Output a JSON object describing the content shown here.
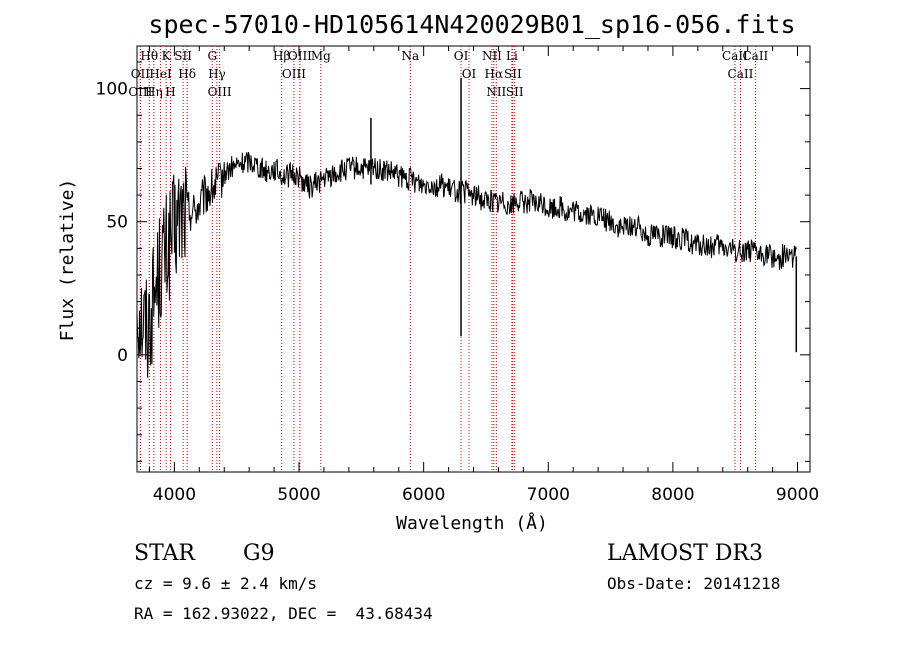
{
  "chart_data": {
    "type": "line",
    "title": "spec-57010-HD105614N420029B01_sp16-056.fits",
    "xlabel": "Wavelength (Å)",
    "ylabel": "Flux (relative)",
    "xlim": [
      3700,
      9100
    ],
    "ylim": [
      -44,
      116
    ],
    "x_ticks": [
      4000,
      5000,
      6000,
      7000,
      8000,
      9000
    ],
    "y_ticks": [
      0,
      50,
      100
    ],
    "grid": false,
    "series": [
      {
        "name": "flux",
        "x": [
          3700,
          3740,
          3780,
          3820,
          3860,
          3900,
          3950,
          4000,
          4050,
          4100,
          4150,
          4200,
          4250,
          4300,
          4350,
          4400,
          4450,
          4500,
          4550,
          4600,
          4650,
          4700,
          4750,
          4800,
          4850,
          4900,
          4950,
          5000,
          5050,
          5100,
          5150,
          5200,
          5250,
          5300,
          5350,
          5400,
          5450,
          5500,
          5550,
          5600,
          5650,
          5700,
          5750,
          5800,
          5850,
          5900,
          5950,
          6000,
          6050,
          6100,
          6150,
          6200,
          6250,
          6300,
          6350,
          6400,
          6450,
          6500,
          6550,
          6600,
          6650,
          6700,
          6750,
          6800,
          6850,
          6900,
          6950,
          7000,
          7050,
          7100,
          7150,
          7200,
          7250,
          7300,
          7350,
          7400,
          7450,
          7500,
          7550,
          7600,
          7650,
          7700,
          7750,
          7800,
          7850,
          7900,
          7950,
          8000,
          8050,
          8100,
          8150,
          8200,
          8250,
          8300,
          8350,
          8400,
          8450,
          8500,
          8550,
          8600,
          8650,
          8700,
          8750,
          8800,
          8850,
          8900,
          8950,
          8990
        ],
        "y": [
          20,
          14,
          10,
          18,
          28,
          35,
          40,
          46,
          52,
          55,
          54,
          56,
          60,
          62,
          64,
          68,
          70,
          71,
          72,
          73,
          72,
          70,
          69,
          70,
          68,
          67,
          68,
          67,
          64,
          63,
          65,
          66,
          67,
          68,
          69,
          70,
          70,
          70,
          69,
          71,
          69,
          69,
          68,
          67,
          66,
          66,
          65,
          64,
          65,
          63,
          64,
          62,
          62,
          61,
          61,
          60,
          59,
          58,
          58,
          57,
          58,
          56,
          58,
          57,
          58,
          56,
          57,
          55,
          55,
          56,
          53,
          54,
          53,
          53,
          52,
          52,
          51,
          50,
          48,
          47,
          49,
          48,
          47,
          45,
          46,
          45,
          44,
          44,
          44,
          43,
          42,
          41,
          41,
          40,
          41,
          40,
          40,
          39,
          39,
          40,
          38,
          37,
          38,
          37,
          36,
          38,
          37,
          37
        ]
      }
    ],
    "features": [
      {
        "x": 6300,
        "y_min": 7,
        "y_max": 104,
        "label": "OI telluric spike"
      },
      {
        "x": 5577,
        "y_min": 64,
        "y_max": 89,
        "label": "sky line"
      },
      {
        "x": 8990,
        "y_min": 1,
        "y_max": 37,
        "label": "red edge"
      }
    ],
    "spectral_lines": [
      {
        "name": "Hθ",
        "wavelength": 3798
      },
      {
        "name": "OII",
        "wavelength": 3727
      },
      {
        "name": "OIII",
        "wavelength": 3727
      },
      {
        "name": "Hη",
        "wavelength": 3835
      },
      {
        "name": "HeI",
        "wavelength": 3889
      },
      {
        "name": "K",
        "wavelength": 3934
      },
      {
        "name": "H",
        "wavelength": 3969
      },
      {
        "name": "SII",
        "wavelength": 4070
      },
      {
        "name": "Hδ",
        "wavelength": 4102
      },
      {
        "name": "G",
        "wavelength": 4304
      },
      {
        "name": "Hγ",
        "wavelength": 4341
      },
      {
        "name": "OIII",
        "wavelength": 4363
      },
      {
        "name": "Hβ",
        "wavelength": 4861
      },
      {
        "name": "OIII",
        "wavelength": 4959
      },
      {
        "name": "OIII",
        "wavelength": 5007
      },
      {
        "name": "Mg",
        "wavelength": 5175
      },
      {
        "name": "Na",
        "wavelength": 5893
      },
      {
        "name": "OI",
        "wavelength": 6300
      },
      {
        "name": "OI",
        "wavelength": 6364
      },
      {
        "name": "NII",
        "wavelength": 6548
      },
      {
        "name": "Hα",
        "wavelength": 6563
      },
      {
        "name": "NII",
        "wavelength": 6583
      },
      {
        "name": "Li",
        "wavelength": 6708
      },
      {
        "name": "SII",
        "wavelength": 6716
      },
      {
        "name": "SII",
        "wavelength": 6731
      },
      {
        "name": "CaII",
        "wavelength": 8498
      },
      {
        "name": "CaII",
        "wavelength": 8542
      },
      {
        "name": "CaII",
        "wavelength": 8662
      }
    ],
    "colors": {
      "spectrum": "#000000",
      "line_markers": "#c00000",
      "axes": "#000000"
    }
  },
  "info": {
    "object_class": "STAR",
    "subclass": "G9",
    "survey": "LAMOST DR3",
    "cz": "cz = 9.6 ± 2.4 km/s",
    "obs_date": "Obs-Date: 20141218",
    "coords": "RA = 162.93022, DEC =  43.68434"
  }
}
